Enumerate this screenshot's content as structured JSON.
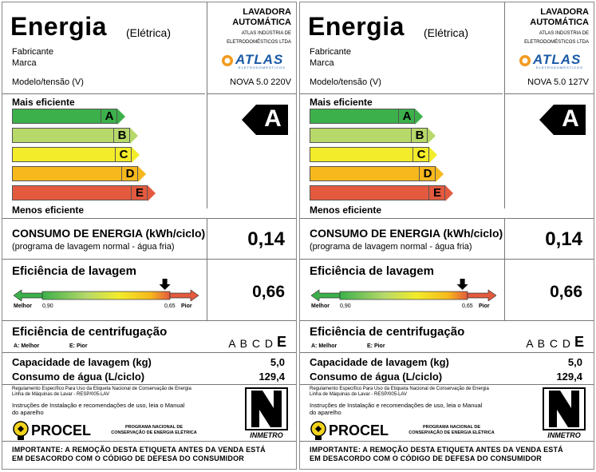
{
  "labels": [
    {
      "title": "Energia",
      "subtitle": "(Elétrica)",
      "fabricante_label": "Fabricante",
      "marca_label": "Marca",
      "modelo_label": "Modelo/tensão (V)",
      "product_type": "LAVADORA AUTOMÁTICA",
      "product_type_1": "LAVADORA",
      "product_type_2": "AUTOMÁTICA",
      "manufacturer_1": "ATLAS INDÚSTRIA DE",
      "manufacturer_2": "ELETRODOMÉSTICOS LTDA",
      "brand": "ATLAS",
      "brand_tagline": "ELETRODOMÉSTICOS",
      "model": "NOVA 5.0 220V",
      "mais_eficiente": "Mais eficiente",
      "menos_eficiente": "Menos eficiente",
      "classes": [
        "A",
        "B",
        "C",
        "D",
        "E"
      ],
      "rating": "A",
      "consumo_title": "CONSUMO DE ENERGIA  (kWh/ciclo)",
      "consumo_sub": "(programa de lavagem normal - água fria)",
      "consumo_value": "0,14",
      "lavagem_title": "Eficiência de lavagem",
      "lavagem_melhor": "Melhor",
      "lavagem_min": "0,90",
      "lavagem_max": "0,65",
      "lavagem_pior": "Pior",
      "lavagem_value": "0,66",
      "lavagem_level": 0.96,
      "centrif_title": "Eficiência de centrifugação",
      "centrif_melhor": "A: Melhor",
      "centrif_pior": "E: Pior",
      "centrif_letters": "A B C D",
      "centrif_rating": "E",
      "capacidade_label": "Capacidade de lavagem (kg)",
      "capacidade_value": "5,0",
      "consumo_agua_label": "Consumo de água (L/ciclo)",
      "consumo_agua_value": "129,4",
      "regulamento_1": "Regulamento Específico Para Uso da Etiqueta Nacional de Conservação de Energia",
      "regulamento_2": "Linha de Máquinas de Lavar - RESP/005-LAV",
      "instrucoes_1": "Instruções de Instalação e recomendações de uso, leia o Manual",
      "instrucoes_2": "do aparelho",
      "procel": "PROCEL",
      "programa_1": "PROGRAMA NACIONAL DE",
      "programa_2": "CONSERVAÇÃO DE ENERGIA ELÉTRICA",
      "inmetro": "INMETRO",
      "importante_1": "IMPORTANTE: A REMOÇÃO DESTA ETIQUETA ANTES DA VENDA ESTÁ",
      "importante_2": "EM DESACORDO COM O CÓDIGO DE  DEFESA  DO CONSUMIDOR"
    },
    {
      "title": "Energia",
      "subtitle": "(Elétrica)",
      "fabricante_label": "Fabricante",
      "marca_label": "Marca",
      "modelo_label": "Modelo/tensão (V)",
      "product_type_1": "LAVADORA",
      "product_type_2": "AUTOMÁTICA",
      "manufacturer_1": "ATLAS INDÚSTRIA DE",
      "manufacturer_2": "ELETRODOMÉSTICOS LTDA",
      "brand": "ATLAS",
      "brand_tagline": "ELETRODOMÉSTICOS",
      "model": "NOVA 5.0 127V",
      "mais_eficiente": "Mais eficiente",
      "menos_eficiente": "Menos eficiente",
      "classes": [
        "A",
        "B",
        "C",
        "D",
        "E"
      ],
      "rating": "A",
      "consumo_title": "CONSUMO DE ENERGIA  (kWh/ciclo)",
      "consumo_sub": "(programa de lavagem normal - água fria)",
      "consumo_value": "0,14",
      "lavagem_title": "Eficiência de lavagem",
      "lavagem_melhor": "Melhor",
      "lavagem_min": "0,90",
      "lavagem_max": "0,65",
      "lavagem_pior": "Pior",
      "lavagem_value": "0,66",
      "lavagem_level": 0.96,
      "centrif_title": "Eficiência de centrifugação",
      "centrif_melhor": "A: Melhor",
      "centrif_pior": "E: Pior",
      "centrif_letters": "A B C D",
      "centrif_rating": "E",
      "capacidade_label": "Capacidade de lavagem (kg)",
      "capacidade_value": "5,0",
      "consumo_agua_label": "Consumo de água (L/ciclo)",
      "consumo_agua_value": "129,4",
      "regulamento_1": "Regulamento Específico Para Uso da Etiqueta Nacional de Conservação de Energia",
      "regulamento_2": "Linha de Máquinas de Lavar - RESP/005-LAV",
      "instrucoes_1": "Instruções de Instalação e recomendações de uso, leia o Manual",
      "instrucoes_2": "do aparelho",
      "procel": "PROCEL",
      "programa_1": "PROGRAMA NACIONAL DE",
      "programa_2": "CONSERVAÇÃO DE ENERGIA ELÉTRICA",
      "inmetro": "INMETRO",
      "importante_1": "IMPORTANTE: A REMOÇÃO DESTA ETIQUETA ANTES DA VENDA ESTÁ",
      "importante_2": "EM DESACORDO COM O CÓDIGO DE  DEFESA  DO CONSUMIDOR"
    }
  ],
  "colors": {
    "class_A": "#3cb04a",
    "class_B": "#b7d96a",
    "class_C": "#f2ec2a",
    "class_D": "#f6b81c",
    "class_E": "#e35a3e",
    "brand_blue": "#1b5aa6",
    "brand_orange": "#f39a1e"
  }
}
